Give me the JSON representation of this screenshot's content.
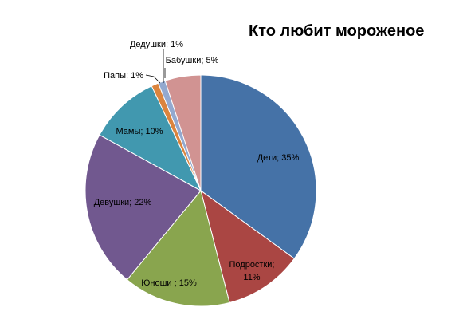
{
  "chart_data": {
    "type": "pie",
    "title": "Кто любит мороженое",
    "slices": [
      {
        "name": "Дети",
        "value": 35,
        "label": "Дети; 35%",
        "color": "#4572a7"
      },
      {
        "name": "Подростки",
        "value": 11,
        "label_lines": [
          "Подростки;",
          "11%"
        ],
        "color": "#aa4643"
      },
      {
        "name": "Юноши",
        "value": 15,
        "label": "Юноши ; 15%",
        "color": "#89a54e"
      },
      {
        "name": "Девушки",
        "value": 22,
        "label": "Девушки; 22%",
        "color": "#71588f"
      },
      {
        "name": "Мамы",
        "value": 10,
        "label": "Мамы; 10%",
        "color": "#4198af"
      },
      {
        "name": "Папы",
        "value": 1,
        "label": "Папы; 1%",
        "color": "#db843d"
      },
      {
        "name": "Дедушки",
        "value": 1,
        "label": "Дедушки;  1%",
        "color": "#93a9cf"
      },
      {
        "name": "Бабушки",
        "value": 5,
        "label": "Бабушки; 5%",
        "color": "#d19392"
      }
    ],
    "legend": "none"
  }
}
